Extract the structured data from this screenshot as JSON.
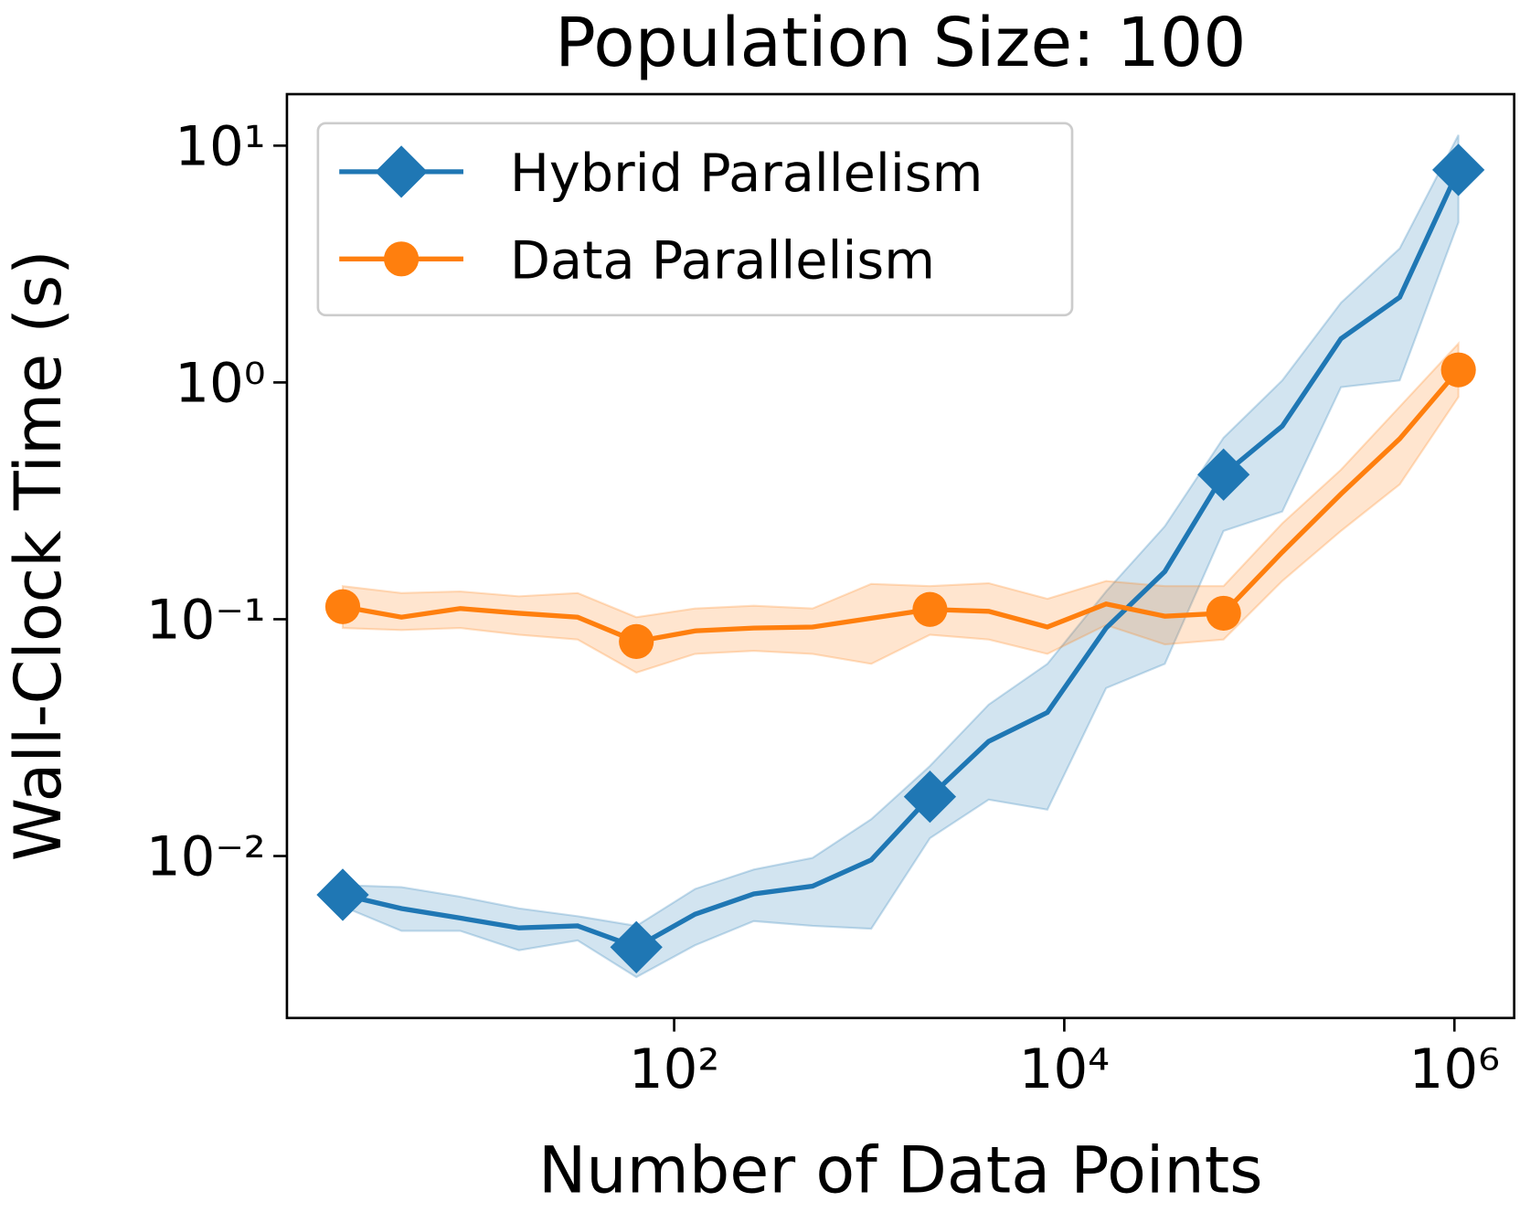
{
  "chart_data": {
    "type": "line",
    "title": "Population Size: 100",
    "xlabel": "Number of Data Points",
    "ylabel": "Wall-Clock Time (s)",
    "xscale": "log",
    "yscale": "log",
    "legend": "upper left",
    "markevery": 5,
    "x": [
      2,
      4,
      8,
      16,
      32,
      64,
      128,
      256,
      512,
      1024,
      2048,
      4096,
      8192,
      16384,
      32768,
      65536,
      131072,
      262144,
      524288,
      1048576
    ],
    "series": [
      {
        "name": "Hybrid Parallelism",
        "color": "#1f77b4",
        "marker": "diamond",
        "values": [
          0.00686,
          0.006,
          0.00547,
          0.00497,
          0.00507,
          0.00412,
          0.00568,
          0.00692,
          0.00746,
          0.00963,
          0.0178,
          0.0305,
          0.0404,
          0.0918,
          0.159,
          0.408,
          0.654,
          1.53,
          2.29,
          7.9
        ],
        "upper": [
          0.00754,
          0.00739,
          0.00673,
          0.00601,
          0.00557,
          0.00507,
          0.00726,
          0.00877,
          0.00982,
          0.0143,
          0.024,
          0.0436,
          0.0648,
          0.131,
          0.247,
          0.584,
          1.02,
          2.17,
          3.68,
          11.1
        ],
        "lower": [
          0.00612,
          0.00483,
          0.00483,
          0.004,
          0.0044,
          0.00308,
          0.0042,
          0.00531,
          0.00507,
          0.00493,
          0.0119,
          0.0173,
          0.0157,
          0.0512,
          0.0648,
          0.236,
          0.285,
          0.955,
          1.02,
          4.74
        ]
      },
      {
        "name": "Data Parallelism",
        "color": "#ff7f0e",
        "marker": "circle",
        "values": [
          0.113,
          0.102,
          0.111,
          0.106,
          0.102,
          0.0805,
          0.0893,
          0.0918,
          0.0927,
          0.101,
          0.11,
          0.108,
          0.0927,
          0.116,
          0.103,
          0.106,
          0.192,
          0.338,
          0.578,
          1.13
        ],
        "upper": [
          0.138,
          0.129,
          0.131,
          0.125,
          0.129,
          0.102,
          0.111,
          0.114,
          0.111,
          0.141,
          0.138,
          0.142,
          0.122,
          0.145,
          0.138,
          0.138,
          0.254,
          0.428,
          0.79,
          1.46
        ],
        "lower": [
          0.0918,
          0.09,
          0.0918,
          0.086,
          0.0821,
          0.0595,
          0.0714,
          0.0735,
          0.0714,
          0.0648,
          0.086,
          0.0821,
          0.0714,
          0.0945,
          0.0783,
          0.0821,
          0.145,
          0.236,
          0.371,
          0.868
        ]
      }
    ],
    "xlim": [
      1.035,
      2025000
    ],
    "ylim": [
      0.00207,
      16.5
    ],
    "xticks": [
      {
        "value": 100,
        "label": "10²"
      },
      {
        "value": 10000,
        "label": "10⁴"
      },
      {
        "value": 1000000,
        "label": "10⁶"
      }
    ],
    "yticks": [
      {
        "value": 0.01,
        "label": "10⁻²"
      },
      {
        "value": 0.1,
        "label": "10⁻¹"
      },
      {
        "value": 1,
        "label": "10⁰"
      },
      {
        "value": 10,
        "label": "10¹"
      }
    ]
  }
}
